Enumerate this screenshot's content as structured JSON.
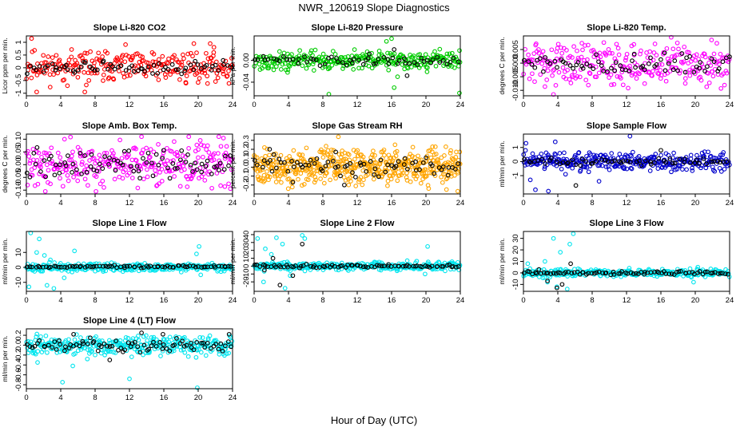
{
  "figure": {
    "title": "NWR_120619  Slope Diagnostics",
    "xlabel": "Hour of Day (UTC)"
  },
  "chart_data": [
    {
      "type": "scatter",
      "title": "Slope Li-820 CO2",
      "ylabel": "Licor ppm per min.",
      "xlim": [
        0,
        24
      ],
      "ylim": [
        -1.1,
        1.25
      ],
      "xticks": [
        0,
        4,
        8,
        12,
        16,
        20,
        24
      ],
      "yticks": [
        -1,
        -0.5,
        0,
        0.5,
        1
      ],
      "ytick_labels": [
        "-1",
        "-0.5",
        "0",
        "0.5",
        "1"
      ],
      "series": [
        {
          "color": "#ff0000",
          "center": 0.05,
          "spread": 0.45,
          "count": 260,
          "seed": 11,
          "outliers": [
            [
              0.6,
              1.15
            ],
            [
              1.2,
              -0.95
            ],
            [
              6.8,
              -0.95
            ],
            [
              19.5,
              0.95
            ],
            [
              21.4,
              0.95
            ],
            [
              21.8,
              0.6
            ]
          ]
        },
        {
          "color": "#000000",
          "center": 0.0,
          "spread": 0.18,
          "count": 70,
          "seed": 12,
          "outliers": []
        }
      ]
    },
    {
      "type": "scatter",
      "title": "Slope Li-820 Pressure",
      "ylabel": "kPa per min.",
      "xlim": [
        0,
        24
      ],
      "ylim": [
        -0.065,
        0.045
      ],
      "xticks": [
        0,
        4,
        8,
        12,
        16,
        20,
        24
      ],
      "yticks": [
        -0.04,
        0.0
      ],
      "ytick_labels": [
        "-0.04",
        "0.00"
      ],
      "series": [
        {
          "color": "#00cc00",
          "center": 0.0,
          "spread": 0.012,
          "count": 300,
          "seed": 21,
          "outliers": [
            [
              16.0,
              0.04
            ],
            [
              16.3,
              -0.05
            ],
            [
              8.7,
              -0.062
            ],
            [
              15.4,
              0.035
            ],
            [
              23.9,
              -0.06
            ],
            [
              3.9,
              -0.022
            ],
            [
              16.7,
              -0.03
            ]
          ]
        },
        {
          "color": "#000000",
          "center": 0.0,
          "spread": 0.006,
          "count": 60,
          "seed": 22,
          "outliers": [
            [
              17.8,
              -0.028
            ],
            [
              16.3,
              0.02
            ],
            [
              13.4,
              0.012
            ]
          ]
        }
      ]
    },
    {
      "type": "scatter",
      "title": "Slope Li-820 Temp.",
      "ylabel": "degrees C per min.",
      "xlim": [
        0,
        24
      ],
      "ylim": [
        -0.012,
        0.01
      ],
      "xticks": [
        0,
        4,
        8,
        12,
        16,
        20,
        24
      ],
      "yticks": [
        -0.01,
        -0.005,
        0,
        0.005
      ],
      "ytick_labels": [
        "-0.010",
        "-0.005",
        "0.000",
        "0.005"
      ],
      "series": [
        {
          "color": "#ff00ff",
          "center": 0.0,
          "spread": 0.0055,
          "count": 280,
          "seed": 31,
          "outliers": [
            [
              3.5,
              -0.0115
            ],
            [
              17.2,
              0.0095
            ],
            [
              21.9,
              0.0085
            ]
          ]
        },
        {
          "color": "#000000",
          "center": 0.0,
          "spread": 0.003,
          "count": 70,
          "seed": 32,
          "outliers": []
        }
      ]
    },
    {
      "type": "scatter",
      "title": "Slope Amb. Box Temp.",
      "ylabel": "degrees C per min.",
      "xlim": [
        0,
        24
      ],
      "ylim": [
        -0.115,
        0.12
      ],
      "xticks": [
        0,
        4,
        8,
        12,
        16,
        20,
        24
      ],
      "yticks": [
        -0.1,
        -0.05,
        0,
        0.05,
        0.1
      ],
      "ytick_labels": [
        "-0.10",
        "-0.05",
        "0.00",
        "0.05",
        "0.10"
      ],
      "series": [
        {
          "color": "#ff00ff",
          "center": 0.0,
          "spread": 0.06,
          "count": 300,
          "seed": 41,
          "outliers": [
            [
              13.4,
              0.11
            ],
            [
              18.9,
              0.11
            ],
            [
              22.4,
              0.11
            ],
            [
              2.2,
              -0.105
            ],
            [
              8.1,
              -0.105
            ]
          ]
        },
        {
          "color": "#000000",
          "center": 0.0,
          "spread": 0.04,
          "count": 80,
          "seed": 42,
          "outliers": []
        }
      ]
    },
    {
      "type": "scatter",
      "title": "Slope Gas Stream RH",
      "ylabel": "percent per min.",
      "xlim": [
        0,
        24
      ],
      "ylim": [
        -0.3,
        0.37
      ],
      "xticks": [
        0,
        4,
        8,
        12,
        16,
        20,
        24
      ],
      "yticks": [
        -0.2,
        -0.1,
        0,
        0.1,
        0.2,
        0.3
      ],
      "ytick_labels": [
        "-0.2",
        "-0.1",
        "0.0",
        "0.1",
        "0.2",
        "0.3"
      ],
      "series": [
        {
          "color": "#ffa500",
          "center": 0.0,
          "spread": 0.14,
          "count": 500,
          "seed": 51,
          "outliers": [
            [
              9.8,
              0.34
            ],
            [
              1.2,
              0.22
            ],
            [
              23.7,
              -0.27
            ],
            [
              16.4,
              0.25
            ]
          ]
        },
        {
          "color": "#000000",
          "center": 0.02,
          "spread": 0.08,
          "count": 70,
          "seed": 52,
          "outliers": [
            [
              1.8,
              0.2
            ],
            [
              9.5,
              0.17
            ],
            [
              2.3,
              0.14
            ],
            [
              4.5,
              -0.17
            ],
            [
              10.5,
              -0.2
            ]
          ]
        }
      ]
    },
    {
      "type": "scatter",
      "title": "Slope Sample Flow",
      "ylabel": "ml/min per min.",
      "xlim": [
        0,
        24
      ],
      "ylim": [
        -2.3,
        1.95
      ],
      "xticks": [
        0,
        4,
        8,
        12,
        16,
        20,
        24
      ],
      "yticks": [
        -1,
        0,
        1
      ],
      "ytick_labels": [
        "-1",
        "0",
        "1"
      ],
      "series": [
        {
          "color": "#0000cc",
          "center": 0.0,
          "spread": 0.45,
          "count": 320,
          "seed": 61,
          "outliers": [
            [
              0.3,
              1.3
            ],
            [
              3.7,
              1.4
            ],
            [
              12.4,
              1.8
            ],
            [
              1.4,
              -2.0
            ],
            [
              2.9,
              -2.1
            ],
            [
              8.8,
              -1.4
            ],
            [
              6.6,
              -0.7
            ],
            [
              0.8,
              -1.3
            ],
            [
              4.9,
              -0.9
            ]
          ]
        },
        {
          "color": "#000000",
          "center": 0.0,
          "spread": 0.2,
          "count": 60,
          "seed": 62,
          "outliers": [
            [
              6.1,
              -1.7
            ],
            [
              16.0,
              0.8
            ]
          ]
        }
      ]
    },
    {
      "type": "scatter",
      "title": "Slope Line 1 Flow",
      "ylabel": "ml/min per min.",
      "xlim": [
        0,
        24
      ],
      "ylim": [
        -16,
        24
      ],
      "xticks": [
        0,
        4,
        8,
        12,
        16,
        20,
        24
      ],
      "yticks": [
        -10,
        0,
        10
      ],
      "ytick_labels": [
        "-10",
        "0",
        "10"
      ],
      "series": [
        {
          "color": "#00e5ee",
          "center": 0.0,
          "spread": 2.0,
          "count": 300,
          "seed": 71,
          "outliers": [
            [
              0.5,
              23
            ],
            [
              1.5,
              19
            ],
            [
              2.1,
              8
            ],
            [
              0.3,
              -13
            ],
            [
              2.4,
              -12
            ],
            [
              3.2,
              -14
            ],
            [
              1.2,
              10
            ],
            [
              2.8,
              5
            ],
            [
              4.4,
              -7
            ],
            [
              5.6,
              11
            ],
            [
              20.1,
              14
            ],
            [
              19.8,
              9
            ],
            [
              20.3,
              -5
            ]
          ]
        },
        {
          "color": "#000000",
          "center": 0.5,
          "spread": 0.6,
          "count": 80,
          "seed": 72,
          "outliers": []
        }
      ]
    },
    {
      "type": "scatter",
      "title": "Slope Line 2 Flow",
      "ylabel": "ml/min per min.",
      "xlim": [
        0,
        24
      ],
      "ylim": [
        -32,
        44
      ],
      "xticks": [
        0,
        4,
        8,
        12,
        16,
        20,
        24
      ],
      "yticks": [
        -20,
        -10,
        0,
        10,
        20,
        30,
        40
      ],
      "ytick_labels": [
        "-20",
        "-10",
        "0",
        "10",
        "20",
        "30",
        "40"
      ],
      "series": [
        {
          "color": "#00e5ee",
          "center": 0.0,
          "spread": 4.0,
          "count": 320,
          "seed": 81,
          "outliers": [
            [
              0.4,
              35
            ],
            [
              1.3,
              22
            ],
            [
              2.0,
              15
            ],
            [
              2.6,
              36
            ],
            [
              3.3,
              28
            ],
            [
              5.6,
              39
            ],
            [
              5.9,
              35
            ],
            [
              1.1,
              -20
            ],
            [
              3.6,
              -28
            ],
            [
              4.2,
              -12
            ],
            [
              20.2,
              25
            ],
            [
              19.9,
              -10
            ]
          ]
        },
        {
          "color": "#000000",
          "center": 0.0,
          "spread": 1.5,
          "count": 80,
          "seed": 82,
          "outliers": [
            [
              3.0,
              -24
            ],
            [
              4.5,
              -12
            ],
            [
              5.6,
              28
            ],
            [
              1.2,
              -5
            ],
            [
              2.2,
              10
            ]
          ]
        }
      ]
    },
    {
      "type": "scatter",
      "title": "Slope Line 3 Flow",
      "ylabel": "ml/min per min.",
      "xlim": [
        0,
        24
      ],
      "ylim": [
        -16,
        36
      ],
      "xticks": [
        0,
        4,
        8,
        12,
        16,
        20,
        24
      ],
      "yticks": [
        -10,
        0,
        10,
        20,
        30
      ],
      "ytick_labels": [
        "-10",
        "0",
        "10",
        "20",
        "30"
      ],
      "series": [
        {
          "color": "#00e5ee",
          "center": 0.0,
          "spread": 2.5,
          "count": 300,
          "seed": 91,
          "outliers": [
            [
              3.5,
              30
            ],
            [
              4.3,
              18
            ],
            [
              5.4,
              25
            ],
            [
              5.8,
              34
            ],
            [
              0.5,
              8
            ],
            [
              2.5,
              10
            ],
            [
              2.8,
              -8
            ],
            [
              3.9,
              -12
            ],
            [
              5.1,
              -14
            ],
            [
              19.8,
              -8
            ],
            [
              20.3,
              5
            ]
          ]
        },
        {
          "color": "#000000",
          "center": 0.0,
          "spread": 1.2,
          "count": 80,
          "seed": 92,
          "outliers": [
            [
              2.8,
              -7
            ],
            [
              3.9,
              -13
            ],
            [
              4.5,
              -10
            ],
            [
              5.5,
              8
            ],
            [
              1.8,
              3
            ]
          ]
        }
      ]
    },
    {
      "type": "scatter",
      "title": "Slope Line 4 (LT) Flow",
      "ylabel": "ml/min per min.",
      "xlim": [
        0,
        24
      ],
      "ylim": [
        -0.88,
        0.33
      ],
      "xticks": [
        0,
        4,
        8,
        12,
        16,
        20,
        24
      ],
      "yticks": [
        -0.8,
        -0.6,
        -0.4,
        -0.2,
        0.0,
        0.2
      ],
      "ytick_labels": [
        "-0.8",
        "-0.6",
        "-0.4",
        "-0.2",
        "0.0",
        "0.2"
      ],
      "series": [
        {
          "color": "#00e5ee",
          "center": 0.0,
          "spread": 0.14,
          "count": 340,
          "seed": 101,
          "outliers": [
            [
              4.2,
              -0.75
            ],
            [
              12.0,
              -0.68
            ],
            [
              19.9,
              -0.86
            ],
            [
              5.4,
              -0.42
            ],
            [
              1.3,
              -0.35
            ],
            [
              7.1,
              -0.28
            ]
          ]
        },
        {
          "color": "#000000",
          "center": 0.0,
          "spread": 0.09,
          "count": 80,
          "seed": 102,
          "outliers": [
            [
              5.5,
              0.22
            ],
            [
              9.7,
              -0.3
            ],
            [
              13.4,
              0.25
            ],
            [
              23.6,
              0.22
            ],
            [
              15.9,
              0.22
            ]
          ]
        }
      ]
    }
  ]
}
